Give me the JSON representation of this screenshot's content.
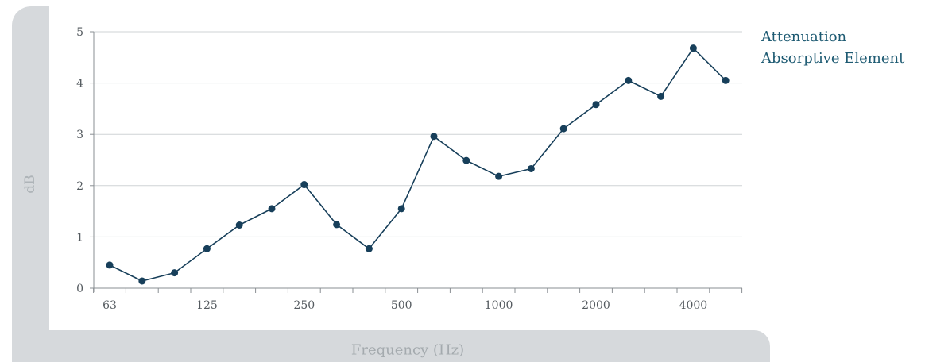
{
  "colors": {
    "series": "#173f5a",
    "grid": "#cfd3d6",
    "axis": "#8a8f93",
    "tick_text": "#555b60",
    "legend": "#1d5a72",
    "frame": "#d6d9dc"
  },
  "chart_data": {
    "type": "line",
    "title": "",
    "xlabel": "Frequency (Hz)",
    "ylabel": "dB",
    "ylim": [
      0,
      5
    ],
    "yticks": [
      0,
      1,
      2,
      3,
      4,
      5
    ],
    "grid": "horizontal",
    "legend": [
      "Attenuation",
      "Absorptive Element"
    ],
    "legend_position": "top-right",
    "x_tick_labels": [
      "63",
      "125",
      "250",
      "500",
      "1000",
      "2000",
      "4000"
    ],
    "x": [
      "63",
      "80",
      "100",
      "125",
      "160",
      "200",
      "250",
      "315",
      "400",
      "500",
      "630",
      "800",
      "1000",
      "1250",
      "1600",
      "2000",
      "2500",
      "3150",
      "4000",
      "5000"
    ],
    "series": [
      {
        "values": [
          0.45,
          0.14,
          0.3,
          0.77,
          1.23,
          1.55,
          2.02,
          1.24,
          0.77,
          1.55,
          2.96,
          2.49,
          2.18,
          2.33,
          3.11,
          3.58,
          4.05,
          3.74,
          4.68,
          4.05
        ]
      }
    ]
  }
}
